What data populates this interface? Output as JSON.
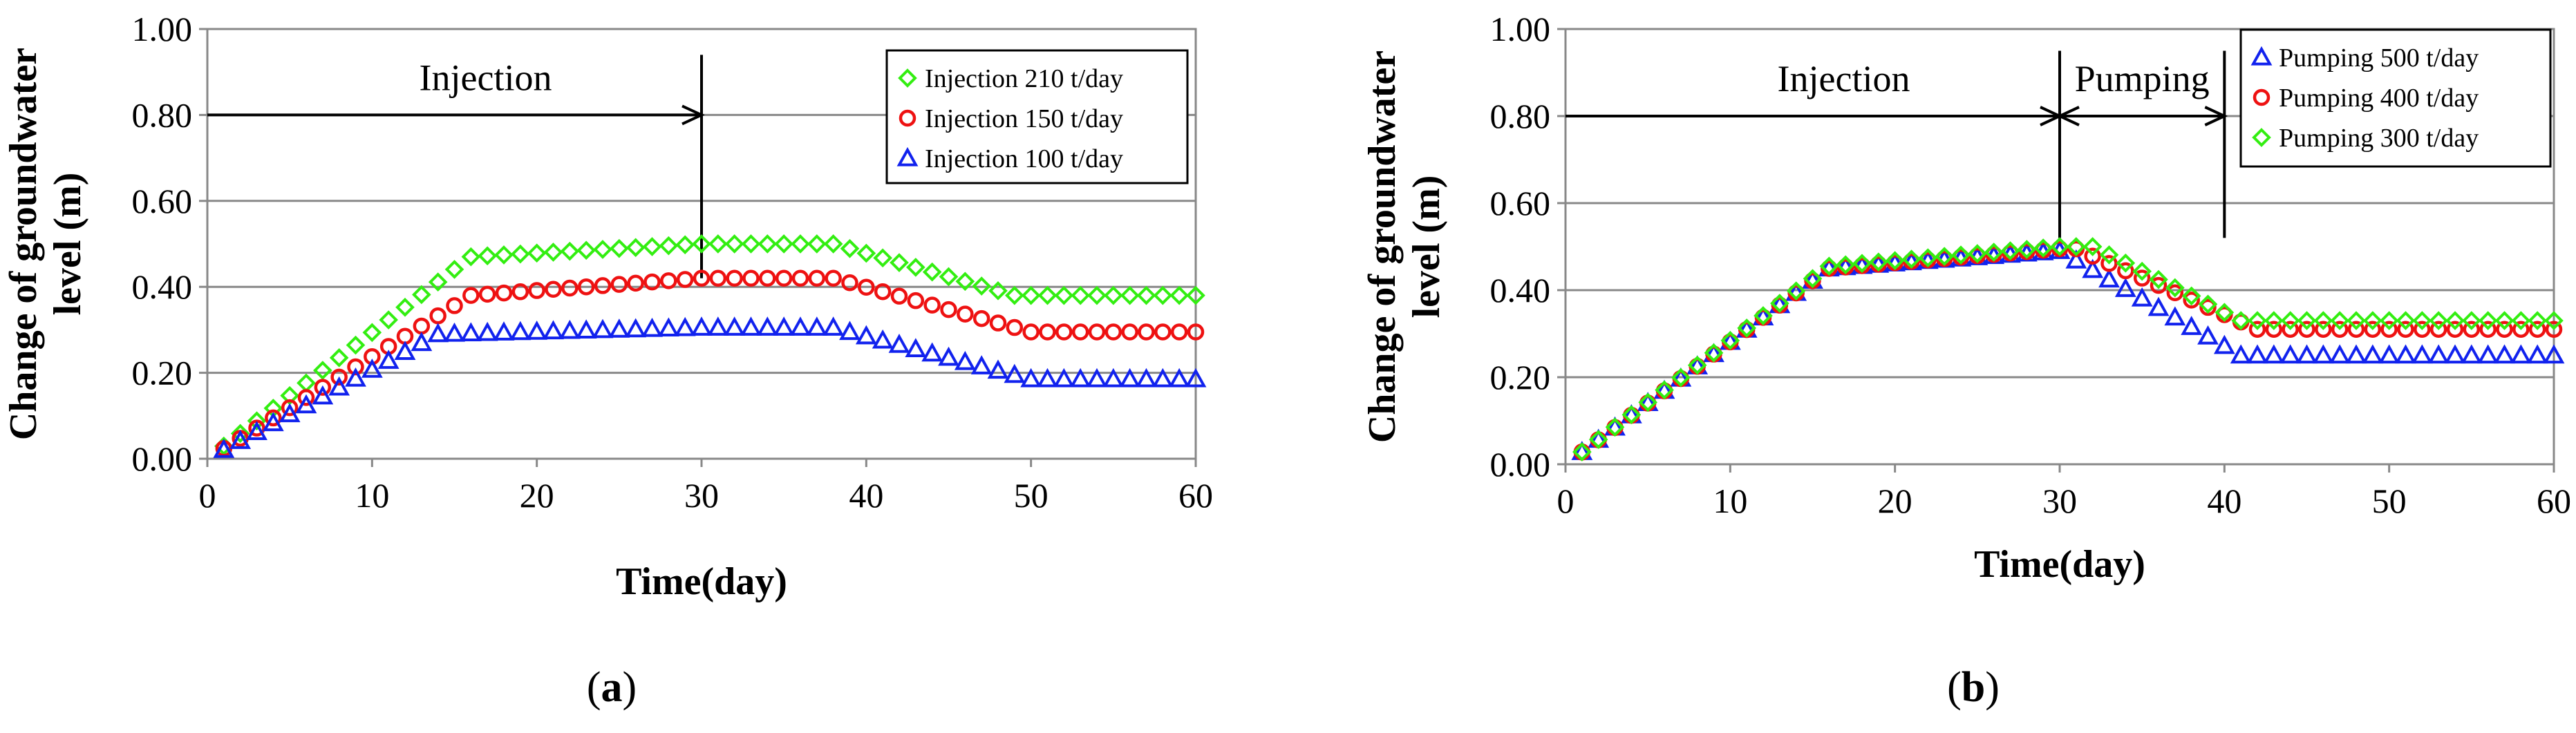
{
  "chart_data": [
    {
      "type": "scatter",
      "panel_label": "a",
      "xlabel": "Time(day)",
      "ylabel_line1": "Change of groundwater",
      "ylabel_line2": "level (m)",
      "xlim": [
        0,
        60
      ],
      "ylim": [
        0,
        1.0
      ],
      "xticks": [
        "0",
        "10",
        "20",
        "30",
        "40",
        "50",
        "60"
      ],
      "yticks": [
        "0.00",
        "0.20",
        "0.40",
        "0.60",
        "0.80",
        "1.00"
      ],
      "grid": "horizontal",
      "legend_position": "top-right",
      "annotations": [
        {
          "text": "Injection",
          "arrow_from_day": 0,
          "arrow_to_day": 30,
          "arrow_level": 0.8
        }
      ],
      "markers": [
        {
          "day": 30,
          "from_level": 0.42,
          "to_level": 0.94
        }
      ],
      "series": [
        {
          "name": "Injection  210 t/day",
          "marker": "diamond",
          "color": "#33ee11",
          "rise_end": 16,
          "plateau": 0.47,
          "peak": 0.5,
          "peak_day": 30,
          "fall_start": 38,
          "fall_end": 49,
          "final": 0.38
        },
        {
          "name": "Injection  150 t/day",
          "marker": "circle",
          "color": "#ee1111",
          "rise_end": 16,
          "plateau": 0.38,
          "peak": 0.42,
          "peak_day": 30,
          "fall_start": 38,
          "fall_end": 50,
          "final": 0.295
        },
        {
          "name": "Injection  100 t/day",
          "marker": "triangle",
          "color": "#1122ee",
          "rise_end": 14,
          "plateau": 0.29,
          "peak": 0.305,
          "peak_day": 30,
          "fall_start": 38,
          "fall_end": 50,
          "final": 0.185
        }
      ]
    },
    {
      "type": "scatter",
      "panel_label": "b",
      "xlabel": "Time(day)",
      "ylabel_line1": "Change of groundwater",
      "ylabel_line2": "level (m)",
      "xlim": [
        0,
        60
      ],
      "ylim": [
        0,
        1.0
      ],
      "xticks": [
        "0",
        "10",
        "20",
        "30",
        "40",
        "50",
        "60"
      ],
      "yticks": [
        "0.00",
        "0.20",
        "0.40",
        "0.60",
        "0.80",
        "1.00"
      ],
      "grid": "horizontal",
      "legend_position": "top-right",
      "annotations": [
        {
          "text": "Injection",
          "arrow_from_day": 0,
          "arrow_to_day": 30,
          "arrow_level": 0.8
        },
        {
          "text": "Pumping",
          "arrow_from_day": 30,
          "arrow_to_day": 40,
          "arrow_level": 0.8
        }
      ],
      "markers": [
        {
          "day": 30,
          "from_level": 0.52,
          "to_level": 0.95
        },
        {
          "day": 40,
          "from_level": 0.52,
          "to_level": 0.95
        }
      ],
      "series": [
        {
          "name": "Pumping  500 t/day",
          "marker": "triangle",
          "color": "#1122ee",
          "rise_end": 16,
          "plateau": 0.45,
          "peak": 0.49,
          "peak_day": 30,
          "fall_start": 30,
          "fall_end": 41,
          "final": 0.25
        },
        {
          "name": "Pumping  400 t/day",
          "marker": "circle",
          "color": "#ee1111",
          "rise_end": 16,
          "plateau": 0.45,
          "peak": 0.495,
          "peak_day": 30,
          "fall_start": 31,
          "fall_end": 42,
          "final": 0.31
        },
        {
          "name": "Pumping  300 t/day",
          "marker": "diamond",
          "color": "#33ee11",
          "rise_end": 16,
          "plateau": 0.455,
          "peak": 0.5,
          "peak_day": 30,
          "fall_start": 32,
          "fall_end": 41,
          "final": 0.33
        }
      ]
    }
  ]
}
